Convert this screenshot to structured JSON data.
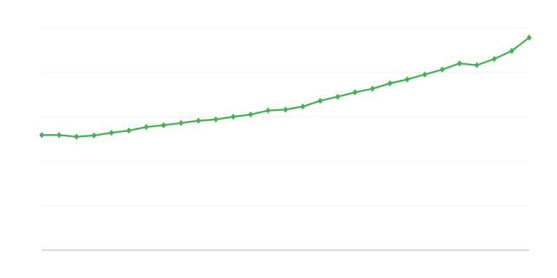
{
  "chart_data": {
    "type": "line",
    "title": "",
    "xlabel": "",
    "ylabel": "",
    "x": [
      1,
      2,
      3,
      4,
      5,
      6,
      7,
      8,
      9,
      10,
      11,
      12,
      13,
      14,
      15,
      16,
      17,
      18,
      19,
      20,
      21,
      22,
      23,
      24,
      25,
      26,
      27,
      28,
      29
    ],
    "series": [
      {
        "values": [
          2.59,
          2.59,
          2.55,
          2.58,
          2.64,
          2.69,
          2.77,
          2.81,
          2.86,
          2.91,
          2.94,
          3.0,
          3.05,
          3.14,
          3.16,
          3.23,
          3.36,
          3.45,
          3.55,
          3.63,
          3.75,
          3.84,
          3.95,
          4.06,
          4.2,
          4.16,
          4.3,
          4.48,
          4.78
        ],
        "color": "#3cb54a",
        "marker": "diamond"
      }
    ],
    "xlim": [
      1,
      29
    ],
    "ylim": [
      0,
      5
    ],
    "grid": true,
    "legend": "none",
    "colors": {
      "gridline": "#ebebeb",
      "axis": "#aaaaaa"
    }
  }
}
